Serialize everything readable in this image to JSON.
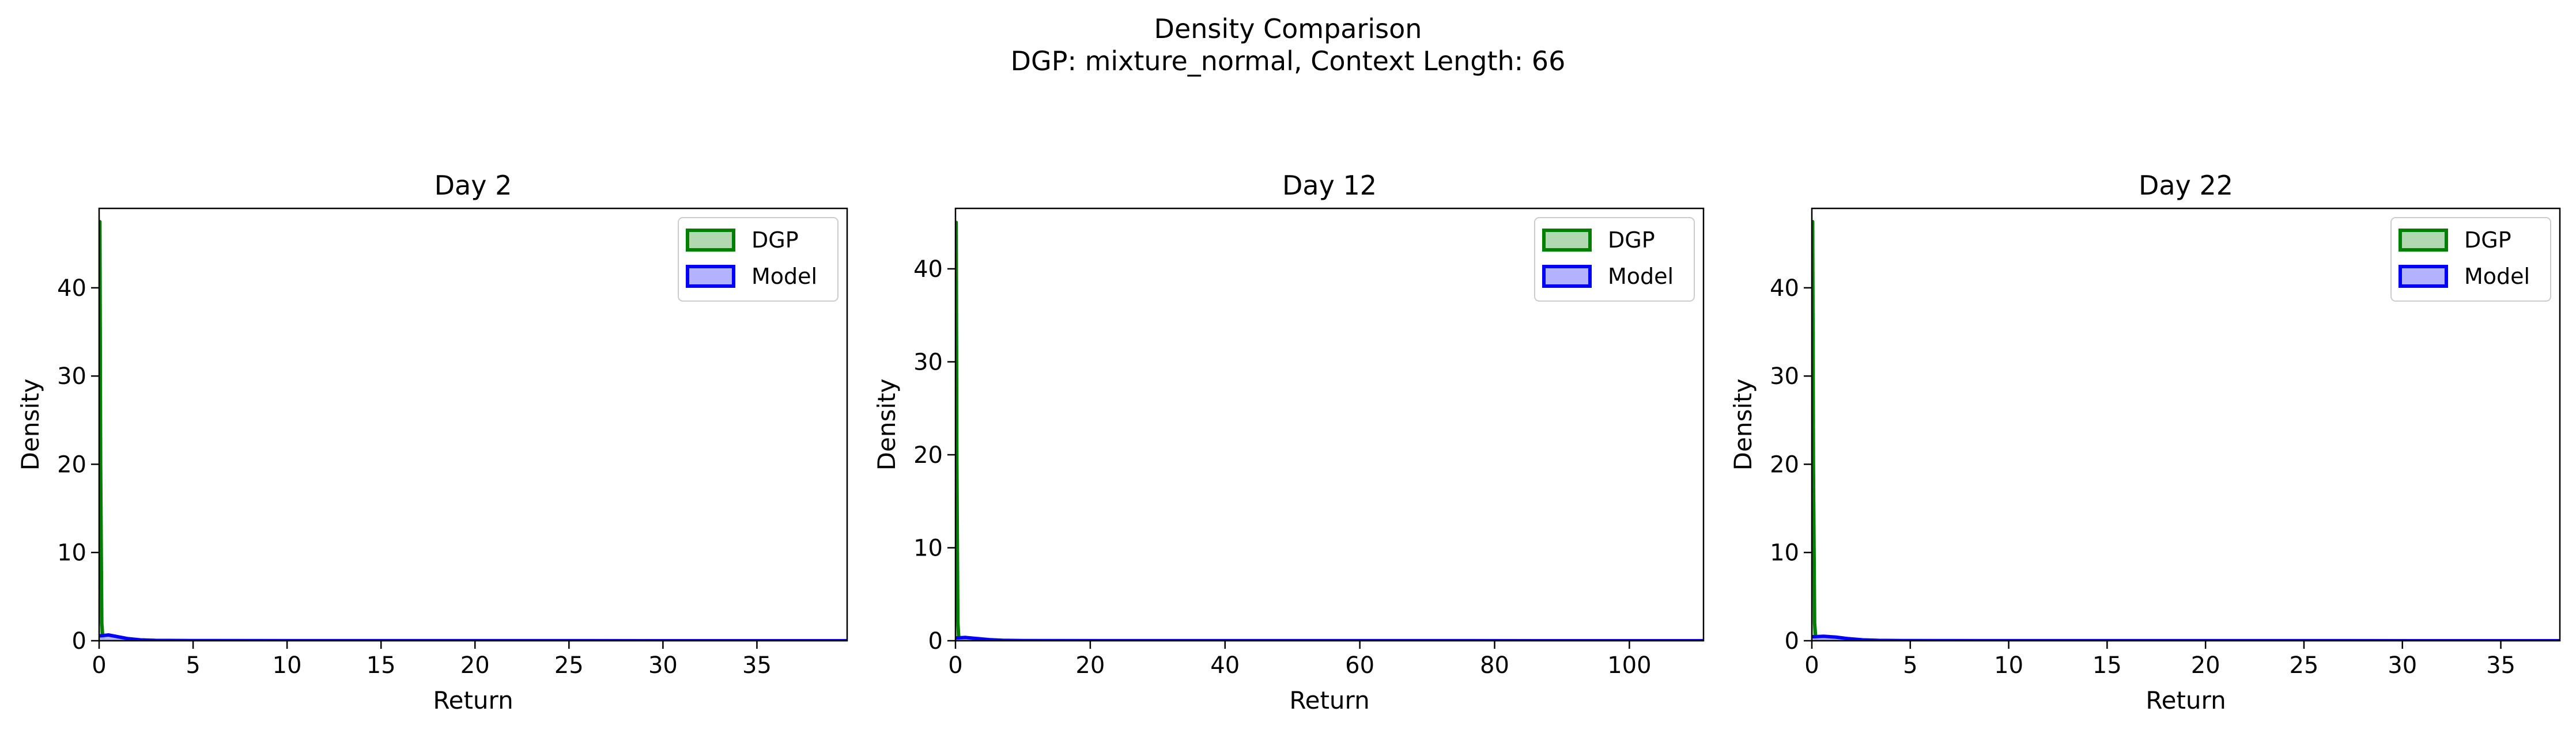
{
  "figure": {
    "title_line1": "Density Comparison",
    "title_line2": "DGP: mixture_normal, Context Length: 66",
    "colors": {
      "dgp_line": "#008000",
      "dgp_fill": "#b2d8b2",
      "model_line": "#0000ff",
      "model_fill": "#b2b2ff",
      "axes": "#000000",
      "background": "#ffffff"
    }
  },
  "chart_data": [
    {
      "type": "area",
      "title": "Day 2",
      "xlabel": "Return",
      "ylabel": "Density",
      "xlim": [
        0,
        39.8
      ],
      "ylim": [
        0,
        49
      ],
      "xticks": [
        0,
        5,
        10,
        15,
        20,
        25,
        30,
        35
      ],
      "yticks": [
        0,
        10,
        20,
        30,
        40
      ],
      "grid": false,
      "legend": {
        "position": "top-right",
        "entries": [
          "DGP",
          "Model"
        ]
      },
      "series": [
        {
          "name": "DGP",
          "color": "#008000",
          "x": [
            0,
            0.04,
            0.08,
            0.14,
            0.2,
            0.3,
            39.8
          ],
          "y": [
            47.5,
            47.5,
            20,
            2,
            0.2,
            0,
            0
          ]
        },
        {
          "name": "Model",
          "color": "#0000ff",
          "x": [
            0,
            0.5,
            1.0,
            1.5,
            2.2,
            3.0,
            5,
            39.8
          ],
          "y": [
            0.55,
            0.65,
            0.45,
            0.25,
            0.1,
            0.04,
            0.01,
            0
          ]
        }
      ]
    },
    {
      "type": "area",
      "title": "Day 12",
      "xlabel": "Return",
      "ylabel": "Density",
      "xlim": [
        0,
        111
      ],
      "ylim": [
        0,
        46.5
      ],
      "xticks": [
        0,
        20,
        40,
        60,
        80,
        100
      ],
      "yticks": [
        0,
        10,
        20,
        30,
        40
      ],
      "grid": false,
      "legend": {
        "position": "top-right",
        "entries": [
          "DGP",
          "Model"
        ]
      },
      "series": [
        {
          "name": "DGP",
          "color": "#008000",
          "x": [
            0,
            0.1,
            0.2,
            0.35,
            0.5,
            0.8,
            111
          ],
          "y": [
            45,
            45,
            20,
            2,
            0.2,
            0,
            0
          ]
        },
        {
          "name": "Model",
          "color": "#0000ff",
          "x": [
            0,
            1.5,
            3,
            5,
            7,
            10,
            111
          ],
          "y": [
            0.3,
            0.35,
            0.25,
            0.12,
            0.05,
            0.01,
            0
          ]
        }
      ]
    },
    {
      "type": "area",
      "title": "Day 22",
      "xlabel": "Return",
      "ylabel": "Density",
      "xlim": [
        0,
        38
      ],
      "ylim": [
        0,
        49
      ],
      "xticks": [
        0,
        5,
        10,
        15,
        20,
        25,
        30,
        35
      ],
      "yticks": [
        0,
        10,
        20,
        30,
        40
      ],
      "grid": false,
      "legend": {
        "position": "top-right",
        "entries": [
          "DGP",
          "Model"
        ]
      },
      "series": [
        {
          "name": "DGP",
          "color": "#008000",
          "x": [
            0,
            0.04,
            0.08,
            0.14,
            0.2,
            0.3,
            38
          ],
          "y": [
            47.5,
            47.5,
            20,
            2,
            0.2,
            0,
            0
          ]
        },
        {
          "name": "Model",
          "color": "#0000ff",
          "x": [
            0,
            0.6,
            1.2,
            1.8,
            2.6,
            3.4,
            5,
            38
          ],
          "y": [
            0.45,
            0.5,
            0.42,
            0.25,
            0.1,
            0.04,
            0.01,
            0
          ]
        }
      ]
    }
  ]
}
